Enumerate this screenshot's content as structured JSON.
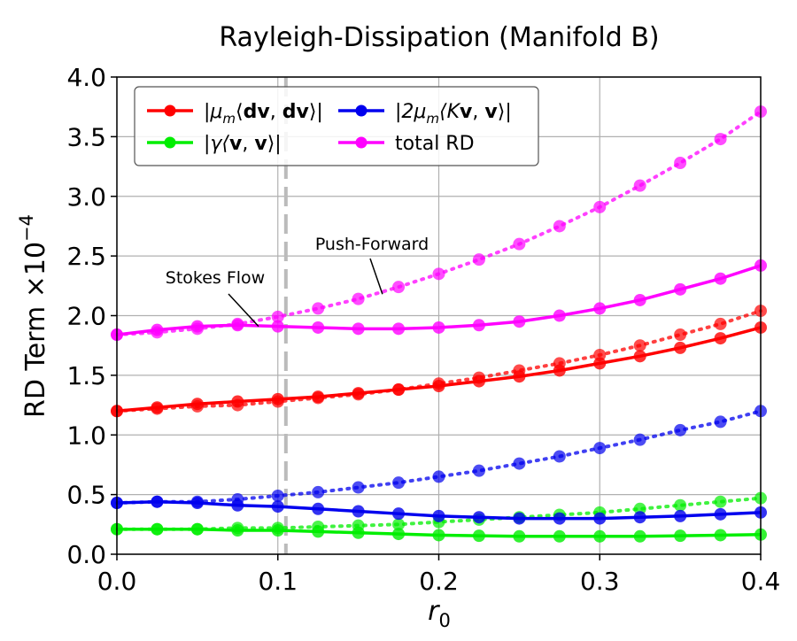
{
  "chart_data": {
    "type": "line",
    "title": "Rayleigh-Dissipation (Manifold B)",
    "xlabel": "r",
    "xlabel_sub": "0",
    "ylabel": "RD Term ×10",
    "ylabel_sup": "−4",
    "xlim": [
      0,
      0.4
    ],
    "ylim": [
      0,
      4.0
    ],
    "xticks": [
      0.0,
      0.1,
      0.2,
      0.3,
      0.4
    ],
    "xtick_labels": [
      "0.0",
      "0.1",
      "0.2",
      "0.3",
      "0.4"
    ],
    "yticks": [
      0.0,
      0.5,
      1.0,
      1.5,
      2.0,
      2.5,
      3.0,
      3.5,
      4.0
    ],
    "ytick_labels": [
      "0.0",
      "0.5",
      "1.0",
      "1.5",
      "2.0",
      "2.5",
      "3.0",
      "3.5",
      "4.0"
    ],
    "grid": true,
    "legend_position": "top-left",
    "x": [
      0,
      0.025,
      0.05,
      0.075,
      0.1,
      0.125,
      0.15,
      0.175,
      0.2,
      0.225,
      0.25,
      0.275,
      0.3,
      0.325,
      0.35,
      0.375,
      0.4
    ],
    "series": [
      {
        "name": "|μ_m⟨dv, dv⟩|",
        "legend_parts": [
          "|μ",
          "m",
          "⟨",
          "dv",
          ", ",
          "dv",
          "⟩|"
        ],
        "color": "#ff0000",
        "solid": [
          1.2,
          1.23,
          1.26,
          1.28,
          1.3,
          1.32,
          1.35,
          1.38,
          1.41,
          1.45,
          1.49,
          1.54,
          1.6,
          1.66,
          1.73,
          1.81,
          1.9
        ],
        "dotted": [
          1.2,
          1.22,
          1.24,
          1.25,
          1.28,
          1.31,
          1.34,
          1.38,
          1.43,
          1.48,
          1.54,
          1.6,
          1.67,
          1.75,
          1.84,
          1.93,
          2.04
        ]
      },
      {
        "name": "|γ⟨v, v⟩|",
        "legend_parts": [
          "|γ⟨",
          "v",
          ", ",
          "v",
          "⟩|"
        ],
        "color": "#00ee00",
        "solid": [
          0.21,
          0.21,
          0.21,
          0.2,
          0.2,
          0.19,
          0.18,
          0.17,
          0.16,
          0.155,
          0.15,
          0.15,
          0.15,
          0.15,
          0.155,
          0.16,
          0.165
        ],
        "dotted": [
          0.21,
          0.21,
          0.21,
          0.22,
          0.22,
          0.23,
          0.24,
          0.25,
          0.27,
          0.29,
          0.31,
          0.33,
          0.35,
          0.38,
          0.41,
          0.44,
          0.47
        ]
      },
      {
        "name": "|2μ_m⟨Kv, v⟩|",
        "legend_parts": [
          "|2μ",
          "m",
          "⟨K",
          "v",
          ", ",
          "v",
          "⟩|"
        ],
        "color": "#0000ee",
        "solid": [
          0.43,
          0.44,
          0.43,
          0.41,
          0.4,
          0.38,
          0.36,
          0.34,
          0.32,
          0.31,
          0.3,
          0.3,
          0.3,
          0.31,
          0.32,
          0.335,
          0.35
        ],
        "dotted": [
          0.43,
          0.44,
          0.44,
          0.46,
          0.49,
          0.52,
          0.56,
          0.6,
          0.65,
          0.7,
          0.76,
          0.82,
          0.89,
          0.96,
          1.04,
          1.11,
          1.2
        ]
      },
      {
        "name": "total RD",
        "legend_parts": [
          "total RD"
        ],
        "color": "#ff00ff",
        "solid": [
          1.84,
          1.88,
          1.91,
          1.92,
          1.91,
          1.9,
          1.89,
          1.89,
          1.9,
          1.92,
          1.95,
          2.0,
          2.06,
          2.13,
          2.22,
          2.31,
          2.42
        ],
        "dotted": [
          1.84,
          1.86,
          1.89,
          1.93,
          1.99,
          2.06,
          2.14,
          2.24,
          2.35,
          2.47,
          2.6,
          2.75,
          2.91,
          3.09,
          3.28,
          3.48,
          3.71
        ]
      }
    ],
    "reference_line": {
      "x": 0.105,
      "color": "#bbbbbb",
      "style": "dashed"
    },
    "annotations": [
      {
        "text": "Push-Forward",
        "points_to": {
          "x": 0.165,
          "y": 2.18
        }
      },
      {
        "text": "Stokes Flow",
        "points_to": {
          "x": 0.088,
          "y": 1.91
        }
      }
    ]
  }
}
